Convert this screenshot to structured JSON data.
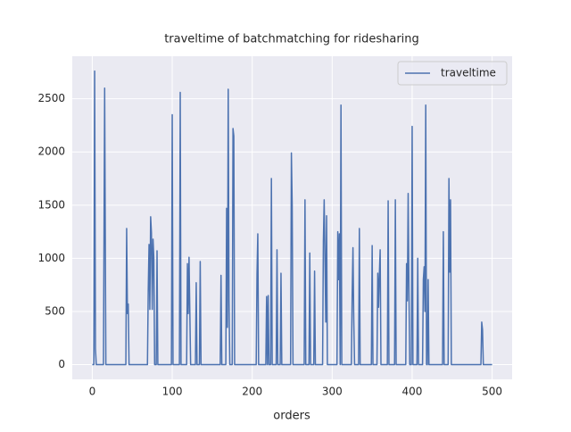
{
  "chart_data": {
    "type": "line",
    "title": "traveltime of batchmatching for ridesharing",
    "xlabel": "orders",
    "x": [
      0,
      2,
      3,
      4,
      5,
      14,
      15.5,
      17,
      42,
      43,
      44,
      45,
      46,
      69,
      70,
      71,
      72,
      73,
      74,
      75,
      76,
      77,
      78,
      80,
      81,
      82,
      99,
      100,
      101,
      109,
      110,
      111,
      118,
      119,
      120,
      121,
      122,
      123,
      129,
      130,
      131,
      134,
      135,
      136,
      160,
      161,
      162,
      167,
      168,
      169,
      170,
      171,
      172,
      175,
      176,
      177,
      178,
      205,
      206,
      207,
      208,
      217,
      218,
      219,
      220,
      221,
      223,
      224,
      225,
      230,
      231,
      232,
      235,
      236,
      237,
      248,
      249,
      250,
      251,
      265,
      266,
      267,
      271,
      272,
      273,
      277,
      278,
      279,
      288,
      289,
      290,
      291,
      292,
      293,
      294,
      306,
      307,
      308,
      309,
      310,
      311,
      312,
      324,
      325,
      326,
      327,
      328,
      333,
      334,
      335,
      349,
      350,
      351,
      356,
      357,
      358,
      359,
      360,
      361,
      369,
      370,
      371,
      378,
      379,
      380,
      392,
      393,
      394,
      395,
      396,
      397,
      399,
      400,
      401,
      406,
      407,
      408,
      413,
      414,
      415,
      416,
      417,
      418,
      419,
      420,
      421,
      438,
      439,
      440,
      445,
      446,
      447,
      448,
      449,
      486,
      487,
      488,
      489,
      500
    ],
    "series": [
      {
        "name": "traveltime",
        "color": "#4c72b0",
        "values": [
          0,
          0,
          2760,
          150,
          0,
          0,
          2600,
          0,
          0,
          1280,
          480,
          570,
          0,
          0,
          700,
          1130,
          520,
          1390,
          1240,
          520,
          1180,
          1000,
          0,
          0,
          1070,
          0,
          0,
          2350,
          0,
          0,
          2560,
          0,
          0,
          950,
          480,
          1010,
          500,
          0,
          0,
          770,
          0,
          0,
          970,
          0,
          0,
          840,
          0,
          0,
          1470,
          350,
          2590,
          600,
          0,
          0,
          2220,
          2150,
          0,
          0,
          850,
          1230,
          0,
          0,
          640,
          0,
          650,
          0,
          0,
          1750,
          0,
          0,
          1080,
          0,
          0,
          860,
          0,
          0,
          1990,
          1500,
          0,
          0,
          1550,
          0,
          0,
          1050,
          0,
          0,
          880,
          0,
          0,
          1160,
          1550,
          1000,
          400,
          1400,
          0,
          0,
          1250,
          800,
          1230,
          0,
          2440,
          0,
          0,
          660,
          1100,
          420,
          0,
          0,
          1280,
          0,
          0,
          1120,
          0,
          0,
          860,
          540,
          850,
          1080,
          0,
          0,
          1540,
          0,
          0,
          1550,
          0,
          0,
          950,
          600,
          1610,
          700,
          0,
          0,
          2240,
          0,
          0,
          1000,
          0,
          0,
          800,
          920,
          500,
          2440,
          0,
          0,
          800,
          0,
          0,
          1250,
          0,
          0,
          1750,
          870,
          1550,
          0,
          0,
          400,
          330,
          0,
          0
        ]
      }
    ],
    "xlim": [
      -25,
      525
    ],
    "ylim": [
      -138,
      2900
    ],
    "xticks": [
      0,
      100,
      200,
      300,
      400,
      500
    ],
    "yticks": [
      0,
      500,
      1000,
      1500,
      2000,
      2500
    ],
    "grid": true,
    "legend": "upper right"
  }
}
